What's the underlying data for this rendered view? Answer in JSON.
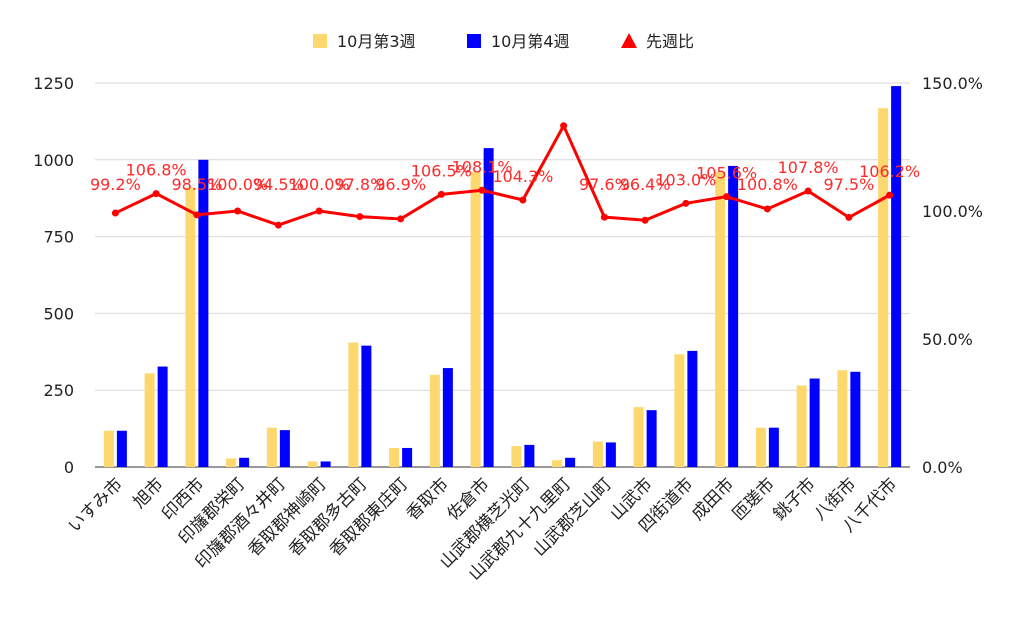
{
  "chart_data": {
    "type": "bar",
    "categories": [
      "いすみ市",
      "旭市",
      "印西市",
      "印旛郡栄町",
      "印旛郡酒々井町",
      "香取郡神崎町",
      "香取郡多古町",
      "香取郡東庄町",
      "香取市",
      "佐倉市",
      "山武郡横芝光町",
      "山武郡九十九里町",
      "山武郡芝山町",
      "山武市",
      "四街道市",
      "成田市",
      "匝瑳市",
      "銚子市",
      "八街市",
      "八千代市"
    ],
    "series": [
      {
        "name": "10月第3週",
        "type": "bar",
        "axis": "left",
        "color": "#fdd86f",
        "values": [
          118,
          305,
          910,
          28,
          128,
          18,
          405,
          62,
          300,
          960,
          68,
          22,
          83,
          195,
          367,
          960,
          128,
          265,
          315,
          1168
        ]
      },
      {
        "name": "10月第4週",
        "type": "bar",
        "axis": "left",
        "color": "#0000ff",
        "values": [
          118,
          327,
          1000,
          30,
          120,
          18,
          395,
          62,
          322,
          1038,
          72,
          30,
          80,
          185,
          378,
          980,
          128,
          288,
          310,
          1240
        ]
      },
      {
        "name": "先週比",
        "type": "line",
        "axis": "right",
        "color": "#ff0000",
        "values": [
          99.2,
          106.8,
          98.5,
          100.0,
          94.5,
          100.0,
          97.8,
          96.9,
          106.5,
          108.1,
          104.3,
          133.3,
          97.6,
          96.4,
          103.0,
          105.6,
          100.8,
          107.8,
          97.5,
          106.2
        ],
        "labels": [
          "99.2%",
          "106.8%",
          "98.5%",
          "100.0%",
          "94.5%",
          "100.0%",
          "97.8%",
          "96.9%",
          "106.5%",
          "108.1%",
          "104.3%",
          "",
          "97.6%",
          "96.4%",
          "103.0%",
          "105.6%",
          "100.8%",
          "107.8%",
          "97.5%",
          "106.2%"
        ]
      }
    ],
    "left_axis": {
      "ylim": [
        0,
        1250
      ],
      "ticks": [
        "0",
        "250",
        "500",
        "750",
        "1000",
        "1250"
      ],
      "tick_values": [
        0,
        250,
        500,
        750,
        1000,
        1250
      ]
    },
    "right_axis": {
      "ylim": [
        0,
        150
      ],
      "ticks": [
        "0.0%",
        "50.0%",
        "100.0%",
        "150.0%"
      ],
      "tick_values": [
        0,
        50,
        100,
        150
      ]
    },
    "grid": true,
    "legend": {
      "position": "top-center",
      "entries": [
        "10月第3週",
        "10月第4週",
        "先週比"
      ]
    },
    "title": "",
    "xlabel": "",
    "ylabel": ""
  }
}
